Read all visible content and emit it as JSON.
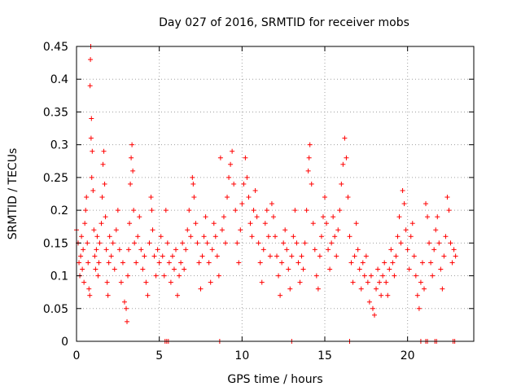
{
  "chart_data": {
    "type": "scatter",
    "title": "Day 027 of 2016, SRMTID for receiver mobs",
    "xlabel": "GPS time / hours",
    "ylabel": "SRMTID / TECUs",
    "xlim": [
      0,
      24
    ],
    "ylim": [
      0,
      0.45
    ],
    "grid": true,
    "marker": "+",
    "color": "#ff0000",
    "x_ticks": [
      0,
      5,
      10,
      15,
      20
    ],
    "x_tick_labels": [
      "0",
      "5",
      "10",
      "15",
      "20"
    ],
    "y_ticks": [
      0,
      0.05,
      0.1,
      0.15,
      0.2,
      0.25,
      0.3,
      0.35,
      0.4,
      0.45
    ],
    "y_tick_labels": [
      "0",
      "0.05",
      "0.1",
      "0.15",
      "0.2",
      "0.25",
      "0.3",
      "0.35",
      "0.4",
      "0.45"
    ],
    "series": [
      {
        "name": "SRMTID",
        "points": [
          [
            0.0,
            0.17
          ],
          [
            0.1,
            0.15
          ],
          [
            0.15,
            0.12
          ],
          [
            0.2,
            0.1
          ],
          [
            0.25,
            0.13
          ],
          [
            0.3,
            0.16
          ],
          [
            0.35,
            0.11
          ],
          [
            0.4,
            0.14
          ],
          [
            0.45,
            0.09
          ],
          [
            0.5,
            0.18
          ],
          [
            0.55,
            0.2
          ],
          [
            0.6,
            0.22
          ],
          [
            0.65,
            0.15
          ],
          [
            0.7,
            0.12
          ],
          [
            0.75,
            0.08
          ],
          [
            0.8,
            0.07
          ],
          [
            0.82,
            0.39
          ],
          [
            0.84,
            0.43
          ],
          [
            0.86,
            0.45
          ],
          [
            0.88,
            0.31
          ],
          [
            0.9,
            0.34
          ],
          [
            0.92,
            0.25
          ],
          [
            0.95,
            0.29
          ],
          [
            1.0,
            0.23
          ],
          [
            1.05,
            0.17
          ],
          [
            1.1,
            0.13
          ],
          [
            1.15,
            0.11
          ],
          [
            1.2,
            0.14
          ],
          [
            1.25,
            0.16
          ],
          [
            1.3,
            0.1
          ],
          [
            1.35,
            0.12
          ],
          [
            1.4,
            0.15
          ],
          [
            1.5,
            0.18
          ],
          [
            1.55,
            0.22
          ],
          [
            1.6,
            0.27
          ],
          [
            1.65,
            0.29
          ],
          [
            1.7,
            0.24
          ],
          [
            1.75,
            0.19
          ],
          [
            1.8,
            0.14
          ],
          [
            1.85,
            0.09
          ],
          [
            1.9,
            0.07
          ],
          [
            1.95,
            0.12
          ],
          [
            2.0,
            0.16
          ],
          [
            2.1,
            0.13
          ],
          [
            2.2,
            0.15
          ],
          [
            2.3,
            0.11
          ],
          [
            2.4,
            0.17
          ],
          [
            2.5,
            0.2
          ],
          [
            2.6,
            0.14
          ],
          [
            2.7,
            0.09
          ],
          [
            2.8,
            0.12
          ],
          [
            2.9,
            0.06
          ],
          [
            3.0,
            0.05
          ],
          [
            3.05,
            0.03
          ],
          [
            3.1,
            0.1
          ],
          [
            3.15,
            0.14
          ],
          [
            3.2,
            0.18
          ],
          [
            3.25,
            0.24
          ],
          [
            3.3,
            0.28
          ],
          [
            3.35,
            0.3
          ],
          [
            3.4,
            0.26
          ],
          [
            3.45,
            0.2
          ],
          [
            3.5,
            0.15
          ],
          [
            3.6,
            0.12
          ],
          [
            3.7,
            0.16
          ],
          [
            3.8,
            0.19
          ],
          [
            3.9,
            0.14
          ],
          [
            4.0,
            0.11
          ],
          [
            4.1,
            0.13
          ],
          [
            4.2,
            0.09
          ],
          [
            4.3,
            0.07
          ],
          [
            4.4,
            0.15
          ],
          [
            4.5,
            0.22
          ],
          [
            4.55,
            0.2
          ],
          [
            4.6,
            0.17
          ],
          [
            4.7,
            0.13
          ],
          [
            4.8,
            0.1
          ],
          [
            4.9,
            0.14
          ],
          [
            5.0,
            0.12
          ],
          [
            5.1,
            0.16
          ],
          [
            5.2,
            0.13
          ],
          [
            5.3,
            0.1
          ],
          [
            5.4,
            0.2
          ],
          [
            5.5,
            0.15
          ],
          [
            5.6,
            0.12
          ],
          [
            5.7,
            0.09
          ],
          [
            5.8,
            0.13
          ],
          [
            5.9,
            0.11
          ],
          [
            6.0,
            0.14
          ],
          [
            6.1,
            0.07
          ],
          [
            6.2,
            0.1
          ],
          [
            6.3,
            0.12
          ],
          [
            6.4,
            0.15
          ],
          [
            6.5,
            0.11
          ],
          [
            6.6,
            0.14
          ],
          [
            6.7,
            0.17
          ],
          [
            6.8,
            0.2
          ],
          [
            6.9,
            0.16
          ],
          [
            7.0,
            0.25
          ],
          [
            7.05,
            0.24
          ],
          [
            7.1,
            0.22
          ],
          [
            7.2,
            0.18
          ],
          [
            7.3,
            0.15
          ],
          [
            7.4,
            0.12
          ],
          [
            7.5,
            0.08
          ],
          [
            7.6,
            0.13
          ],
          [
            7.7,
            0.16
          ],
          [
            7.8,
            0.19
          ],
          [
            7.9,
            0.15
          ],
          [
            8.0,
            0.12
          ],
          [
            8.1,
            0.09
          ],
          [
            8.2,
            0.14
          ],
          [
            8.3,
            0.18
          ],
          [
            8.4,
            0.16
          ],
          [
            8.5,
            0.13
          ],
          [
            8.6,
            0.1
          ],
          [
            8.7,
            0.28
          ],
          [
            8.8,
            0.17
          ],
          [
            8.9,
            0.19
          ],
          [
            9.0,
            0.15
          ],
          [
            9.1,
            0.22
          ],
          [
            9.2,
            0.25
          ],
          [
            9.3,
            0.27
          ],
          [
            9.4,
            0.29
          ],
          [
            9.5,
            0.24
          ],
          [
            9.6,
            0.2
          ],
          [
            9.7,
            0.15
          ],
          [
            9.8,
            0.12
          ],
          [
            9.9,
            0.17
          ],
          [
            10.0,
            0.21
          ],
          [
            10.1,
            0.24
          ],
          [
            10.2,
            0.28
          ],
          [
            10.3,
            0.25
          ],
          [
            10.4,
            0.22
          ],
          [
            10.5,
            0.18
          ],
          [
            10.6,
            0.16
          ],
          [
            10.7,
            0.2
          ],
          [
            10.8,
            0.23
          ],
          [
            10.9,
            0.19
          ],
          [
            11.0,
            0.15
          ],
          [
            11.1,
            0.12
          ],
          [
            11.2,
            0.09
          ],
          [
            11.3,
            0.14
          ],
          [
            11.4,
            0.18
          ],
          [
            11.5,
            0.2
          ],
          [
            11.6,
            0.16
          ],
          [
            11.7,
            0.13
          ],
          [
            11.8,
            0.21
          ],
          [
            11.9,
            0.19
          ],
          [
            12.0,
            0.16
          ],
          [
            12.1,
            0.13
          ],
          [
            12.2,
            0.1
          ],
          [
            12.3,
            0.07
          ],
          [
            12.4,
            0.12
          ],
          [
            12.5,
            0.15
          ],
          [
            12.6,
            0.17
          ],
          [
            12.7,
            0.14
          ],
          [
            12.8,
            0.11
          ],
          [
            12.9,
            0.08
          ],
          [
            13.0,
            0.13
          ],
          [
            13.1,
            0.16
          ],
          [
            13.2,
            0.2
          ],
          [
            13.3,
            0.15
          ],
          [
            13.4,
            0.12
          ],
          [
            13.5,
            0.09
          ],
          [
            13.6,
            0.13
          ],
          [
            13.7,
            0.11
          ],
          [
            13.8,
            0.15
          ],
          [
            13.9,
            0.2
          ],
          [
            14.0,
            0.26
          ],
          [
            14.05,
            0.28
          ],
          [
            14.1,
            0.3
          ],
          [
            14.2,
            0.24
          ],
          [
            14.3,
            0.18
          ],
          [
            14.4,
            0.14
          ],
          [
            14.5,
            0.1
          ],
          [
            14.6,
            0.08
          ],
          [
            14.7,
            0.13
          ],
          [
            14.8,
            0.16
          ],
          [
            14.9,
            0.19
          ],
          [
            15.0,
            0.22
          ],
          [
            15.1,
            0.18
          ],
          [
            15.2,
            0.14
          ],
          [
            15.3,
            0.11
          ],
          [
            15.4,
            0.15
          ],
          [
            15.5,
            0.19
          ],
          [
            15.6,
            0.16
          ],
          [
            15.7,
            0.13
          ],
          [
            15.8,
            0.17
          ],
          [
            15.9,
            0.2
          ],
          [
            16.0,
            0.24
          ],
          [
            16.1,
            0.27
          ],
          [
            16.2,
            0.31
          ],
          [
            16.3,
            0.28
          ],
          [
            16.4,
            0.22
          ],
          [
            16.5,
            0.16
          ],
          [
            16.6,
            0.12
          ],
          [
            16.7,
            0.09
          ],
          [
            16.8,
            0.13
          ],
          [
            16.9,
            0.18
          ],
          [
            17.0,
            0.14
          ],
          [
            17.1,
            0.11
          ],
          [
            17.2,
            0.08
          ],
          [
            17.3,
            0.12
          ],
          [
            17.4,
            0.1
          ],
          [
            17.5,
            0.13
          ],
          [
            17.6,
            0.09
          ],
          [
            17.7,
            0.06
          ],
          [
            17.8,
            0.1
          ],
          [
            17.9,
            0.05
          ],
          [
            18.0,
            0.04
          ],
          [
            18.1,
            0.08
          ],
          [
            18.2,
            0.11
          ],
          [
            18.3,
            0.09
          ],
          [
            18.4,
            0.07
          ],
          [
            18.5,
            0.1
          ],
          [
            18.6,
            0.12
          ],
          [
            18.7,
            0.09
          ],
          [
            18.8,
            0.07
          ],
          [
            18.9,
            0.11
          ],
          [
            19.0,
            0.14
          ],
          [
            19.1,
            0.12
          ],
          [
            19.2,
            0.1
          ],
          [
            19.3,
            0.13
          ],
          [
            19.4,
            0.16
          ],
          [
            19.5,
            0.19
          ],
          [
            19.6,
            0.15
          ],
          [
            19.7,
            0.23
          ],
          [
            19.8,
            0.21
          ],
          [
            19.9,
            0.17
          ],
          [
            20.0,
            0.14
          ],
          [
            20.1,
            0.11
          ],
          [
            20.2,
            0.16
          ],
          [
            20.3,
            0.18
          ],
          [
            20.4,
            0.13
          ],
          [
            20.5,
            0.1
          ],
          [
            20.6,
            0.07
          ],
          [
            20.7,
            0.05
          ],
          [
            20.8,
            0.09
          ],
          [
            20.9,
            0.12
          ],
          [
            21.0,
            0.08
          ],
          [
            21.1,
            0.21
          ],
          [
            21.2,
            0.19
          ],
          [
            21.3,
            0.15
          ],
          [
            21.4,
            0.12
          ],
          [
            21.5,
            0.1
          ],
          [
            21.6,
            0.14
          ],
          [
            21.7,
            0.17
          ],
          [
            21.8,
            0.19
          ],
          [
            21.9,
            0.15
          ],
          [
            22.0,
            0.11
          ],
          [
            22.1,
            0.08
          ],
          [
            22.2,
            0.13
          ],
          [
            22.3,
            0.16
          ],
          [
            22.4,
            0.22
          ],
          [
            22.5,
            0.2
          ],
          [
            22.6,
            0.15
          ],
          [
            22.7,
            0.12
          ],
          [
            22.8,
            0.14
          ],
          [
            22.9,
            0.13
          ]
        ],
        "zeros": [
          5.35,
          5.45,
          5.55,
          8.65,
          13.0,
          16.5,
          20.8,
          21.1,
          21.2,
          21.65,
          21.75,
          22.75,
          22.85
        ]
      }
    ]
  }
}
